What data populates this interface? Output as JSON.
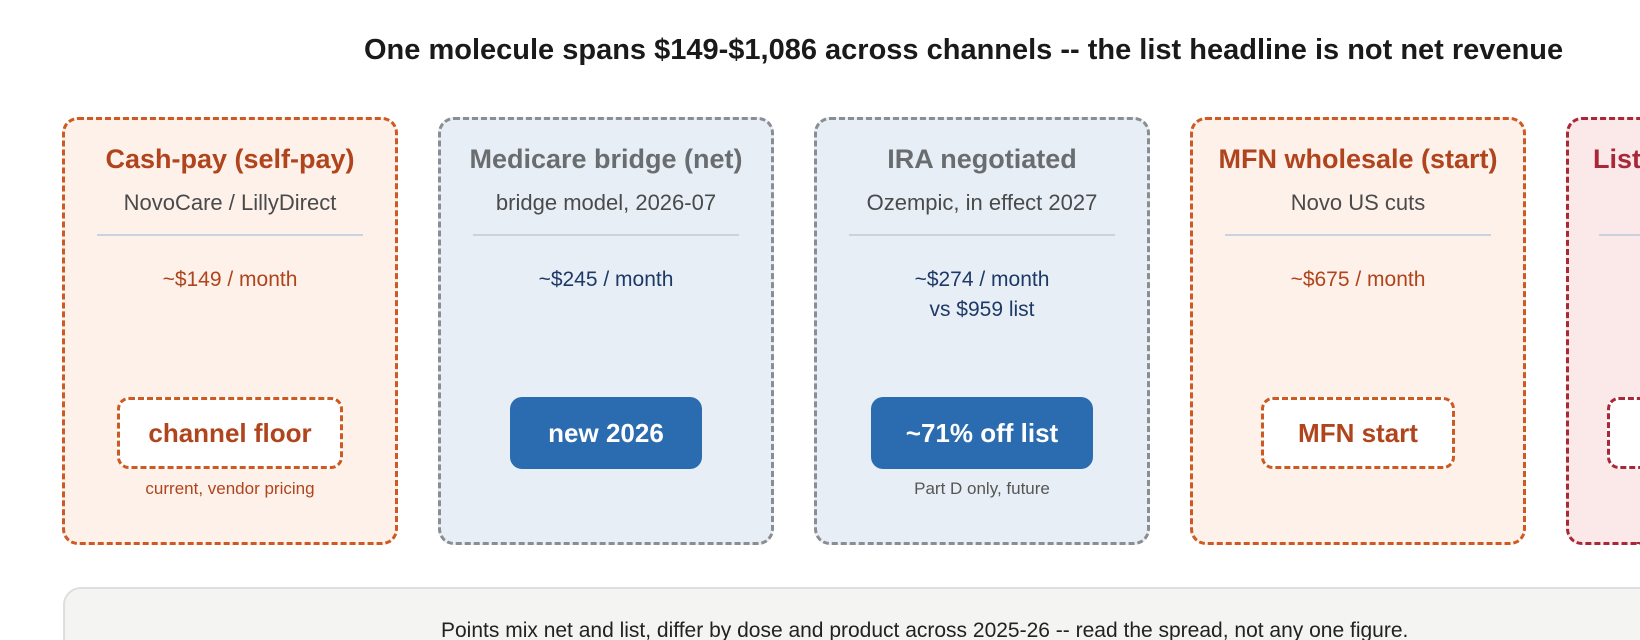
{
  "title": "One molecule spans $149-$1,086 across channels -- the list headline is not net revenue",
  "cards": [
    {
      "title": "Cash-pay (self-pay)",
      "subtitle": "NovoCare / LillyDirect",
      "price_line1": "~$149 / month",
      "price_line2": "",
      "badge": "channel floor",
      "note": "current, vendor pricing"
    },
    {
      "title": "Medicare bridge (net)",
      "subtitle": "bridge model, 2026-07",
      "price_line1": "~$245 / month",
      "price_line2": "",
      "badge": "new 2026",
      "note": ""
    },
    {
      "title": "IRA negotiated",
      "subtitle": "Ozempic, in effect 2027",
      "price_line1": "~$274 / month",
      "price_line2": "vs $959 list",
      "badge": "~71% off list",
      "note": "Part D only, future"
    },
    {
      "title": "MFN wholesale (start)",
      "subtitle": "Novo US cuts",
      "price_line1": "~$675 / month",
      "price_line2": "",
      "badge": "MFN start",
      "note": ""
    },
    {
      "title": "List",
      "subtitle": "",
      "price_line1": "",
      "price_line2": "",
      "badge": "",
      "note": ""
    }
  ],
  "footer": "Points mix net and list, differ by dose and product across 2025-26 -- read the spread, not any one figure."
}
